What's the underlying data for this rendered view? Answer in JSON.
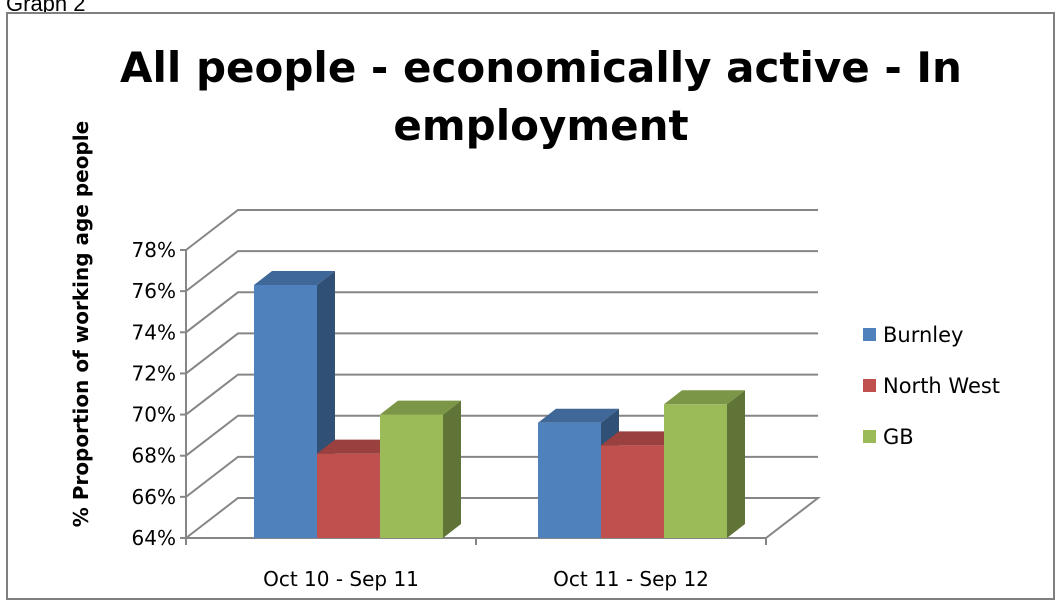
{
  "page": {
    "caption": "Graph 2"
  },
  "chart_data": {
    "type": "bar",
    "title_lines": [
      "All people - economically active - In",
      "employment"
    ],
    "ylabel": "% Proportion of working age people",
    "xlabel": "",
    "categories": [
      "Oct 10 - Sep 11",
      "Oct 11 - Sep 12"
    ],
    "series": [
      {
        "name": "Burnley",
        "values": [
          76.3,
          69.6
        ],
        "color": "#4f81bd"
      },
      {
        "name": "North West",
        "values": [
          68.1,
          68.5
        ],
        "color": "#c0504d"
      },
      {
        "name": "GB",
        "values": [
          70.0,
          70.5
        ],
        "color": "#9bbb59"
      }
    ],
    "ylim": [
      64,
      78
    ],
    "yticks": [
      "64%",
      "66%",
      "68%",
      "70%",
      "72%",
      "74%",
      "76%",
      "78%"
    ],
    "grid": true,
    "legend_position": "right",
    "three_d": true
  }
}
